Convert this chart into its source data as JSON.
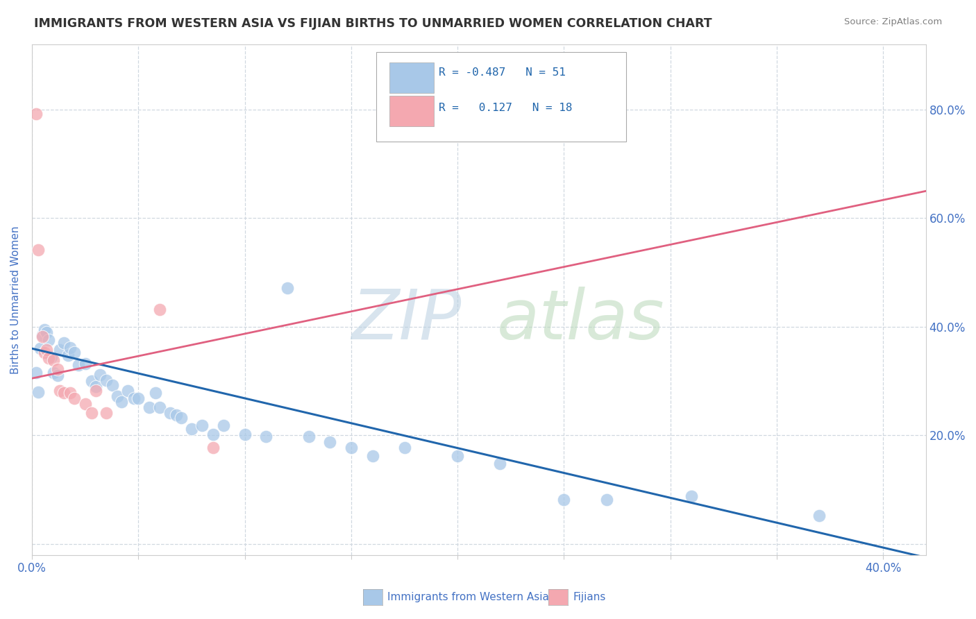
{
  "title": "IMMIGRANTS FROM WESTERN ASIA VS FIJIAN BIRTHS TO UNMARRIED WOMEN CORRELATION CHART",
  "source": "Source: ZipAtlas.com",
  "ylabel": "Births to Unmarried Women",
  "xlim": [
    0.0,
    0.42
  ],
  "ylim": [
    -0.02,
    0.92
  ],
  "x_ticks": [
    0.0,
    0.05,
    0.1,
    0.15,
    0.2,
    0.25,
    0.3,
    0.35,
    0.4
  ],
  "y_ticks": [
    0.0,
    0.2,
    0.4,
    0.6,
    0.8
  ],
  "y_tick_labels_right": [
    "",
    "20.0%",
    "40.0%",
    "60.0%",
    "80.0%"
  ],
  "x_tick_labels": [
    "0.0%",
    "",
    "",
    "",
    "",
    "",
    "",
    "",
    "40.0%"
  ],
  "blue_R": "-0.487",
  "blue_N": "51",
  "pink_R": "0.127",
  "pink_N": "18",
  "blue_scatter": [
    [
      0.002,
      0.315
    ],
    [
      0.003,
      0.28
    ],
    [
      0.004,
      0.36
    ],
    [
      0.005,
      0.385
    ],
    [
      0.006,
      0.395
    ],
    [
      0.007,
      0.39
    ],
    [
      0.008,
      0.375
    ],
    [
      0.009,
      0.345
    ],
    [
      0.01,
      0.315
    ],
    [
      0.012,
      0.31
    ],
    [
      0.013,
      0.358
    ],
    [
      0.015,
      0.37
    ],
    [
      0.017,
      0.348
    ],
    [
      0.018,
      0.362
    ],
    [
      0.02,
      0.352
    ],
    [
      0.022,
      0.33
    ],
    [
      0.025,
      0.332
    ],
    [
      0.028,
      0.3
    ],
    [
      0.03,
      0.29
    ],
    [
      0.032,
      0.312
    ],
    [
      0.035,
      0.302
    ],
    [
      0.038,
      0.292
    ],
    [
      0.04,
      0.272
    ],
    [
      0.042,
      0.262
    ],
    [
      0.045,
      0.282
    ],
    [
      0.048,
      0.268
    ],
    [
      0.05,
      0.268
    ],
    [
      0.055,
      0.252
    ],
    [
      0.058,
      0.278
    ],
    [
      0.06,
      0.252
    ],
    [
      0.065,
      0.242
    ],
    [
      0.068,
      0.238
    ],
    [
      0.07,
      0.232
    ],
    [
      0.075,
      0.212
    ],
    [
      0.08,
      0.218
    ],
    [
      0.085,
      0.202
    ],
    [
      0.09,
      0.218
    ],
    [
      0.1,
      0.202
    ],
    [
      0.11,
      0.198
    ],
    [
      0.12,
      0.472
    ],
    [
      0.13,
      0.198
    ],
    [
      0.14,
      0.188
    ],
    [
      0.15,
      0.178
    ],
    [
      0.16,
      0.162
    ],
    [
      0.175,
      0.178
    ],
    [
      0.2,
      0.162
    ],
    [
      0.22,
      0.148
    ],
    [
      0.25,
      0.082
    ],
    [
      0.27,
      0.082
    ],
    [
      0.31,
      0.088
    ],
    [
      0.37,
      0.052
    ]
  ],
  "pink_scatter": [
    [
      0.002,
      0.792
    ],
    [
      0.003,
      0.542
    ],
    [
      0.005,
      0.382
    ],
    [
      0.006,
      0.352
    ],
    [
      0.007,
      0.358
    ],
    [
      0.008,
      0.342
    ],
    [
      0.01,
      0.338
    ],
    [
      0.012,
      0.322
    ],
    [
      0.013,
      0.282
    ],
    [
      0.015,
      0.278
    ],
    [
      0.018,
      0.278
    ],
    [
      0.02,
      0.268
    ],
    [
      0.025,
      0.258
    ],
    [
      0.028,
      0.242
    ],
    [
      0.03,
      0.282
    ],
    [
      0.035,
      0.242
    ],
    [
      0.06,
      0.432
    ],
    [
      0.085,
      0.178
    ]
  ],
  "blue_line_x": [
    0.0,
    0.42
  ],
  "blue_line_y": [
    0.36,
    -0.025
  ],
  "pink_line_x": [
    0.0,
    0.42
  ],
  "pink_line_y": [
    0.305,
    0.65
  ],
  "bg_color": "#ffffff",
  "blue_color": "#a8c8e8",
  "pink_color": "#f4a8b0",
  "blue_line_color": "#2166ac",
  "pink_line_color": "#e06080",
  "grid_color": "#d0d8e0",
  "title_color": "#333333",
  "axis_label_color": "#4472c4",
  "tick_label_color": "#4472c4",
  "legend_text_color": "#2166ac"
}
